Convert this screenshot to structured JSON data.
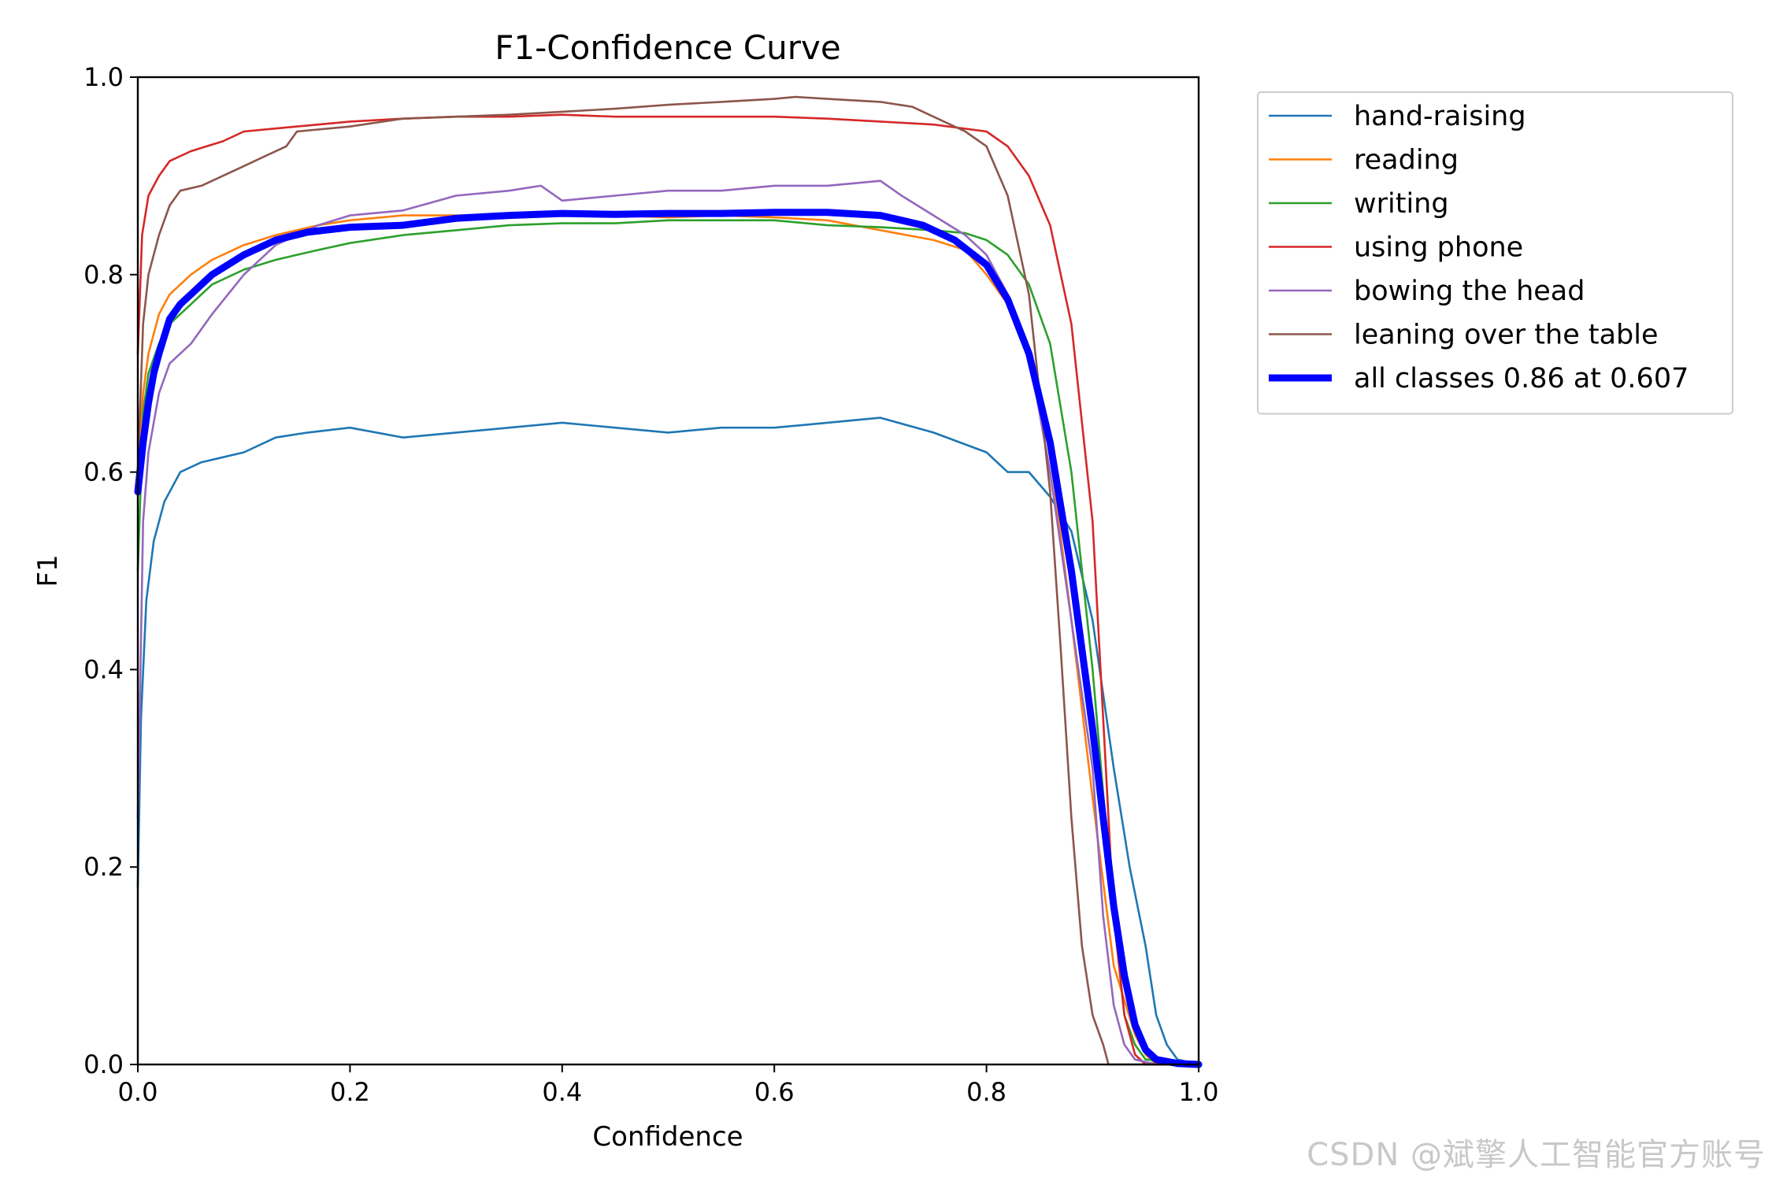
{
  "chart_data": {
    "type": "line",
    "title": "F1-Confidence Curve",
    "xlabel": "Confidence",
    "ylabel": "F1",
    "xlim": [
      0.0,
      1.0
    ],
    "ylim": [
      0.0,
      1.0
    ],
    "xticks": [
      "0.0",
      "0.2",
      "0.4",
      "0.6",
      "0.8",
      "1.0"
    ],
    "yticks": [
      "0.0",
      "0.2",
      "0.4",
      "0.6",
      "0.8",
      "1.0"
    ],
    "grid": false,
    "legend_position": "outside-top-right",
    "series": [
      {
        "name": "hand-raising",
        "color": "#1f77b4",
        "x": [
          0.0,
          0.003,
          0.008,
          0.015,
          0.025,
          0.04,
          0.06,
          0.08,
          0.1,
          0.13,
          0.16,
          0.2,
          0.25,
          0.3,
          0.35,
          0.4,
          0.45,
          0.5,
          0.55,
          0.6,
          0.65,
          0.7,
          0.75,
          0.8,
          0.82,
          0.84,
          0.86,
          0.88,
          0.9,
          0.92,
          0.935,
          0.95,
          0.96,
          0.97,
          0.98,
          1.0
        ],
        "y": [
          0.18,
          0.35,
          0.47,
          0.53,
          0.57,
          0.6,
          0.61,
          0.615,
          0.62,
          0.635,
          0.64,
          0.645,
          0.635,
          0.64,
          0.645,
          0.65,
          0.645,
          0.64,
          0.645,
          0.645,
          0.65,
          0.655,
          0.64,
          0.62,
          0.6,
          0.6,
          0.575,
          0.54,
          0.45,
          0.3,
          0.2,
          0.12,
          0.05,
          0.02,
          0.005,
          0.0
        ]
      },
      {
        "name": "reading",
        "color": "#ff7f0e",
        "x": [
          0.0,
          0.005,
          0.01,
          0.02,
          0.03,
          0.05,
          0.07,
          0.1,
          0.13,
          0.17,
          0.2,
          0.25,
          0.3,
          0.35,
          0.4,
          0.45,
          0.5,
          0.55,
          0.6,
          0.65,
          0.7,
          0.75,
          0.78,
          0.8,
          0.82,
          0.84,
          0.86,
          0.88,
          0.9,
          0.92,
          0.94,
          0.95,
          0.96,
          1.0
        ],
        "y": [
          0.6,
          0.68,
          0.72,
          0.76,
          0.78,
          0.8,
          0.815,
          0.83,
          0.84,
          0.85,
          0.855,
          0.86,
          0.86,
          0.86,
          0.862,
          0.86,
          0.858,
          0.86,
          0.858,
          0.855,
          0.845,
          0.835,
          0.825,
          0.8,
          0.77,
          0.72,
          0.62,
          0.45,
          0.27,
          0.1,
          0.03,
          0.01,
          0.0,
          0.0
        ]
      },
      {
        "name": "writing",
        "color": "#2ca02c",
        "x": [
          0.0,
          0.005,
          0.01,
          0.02,
          0.03,
          0.05,
          0.07,
          0.1,
          0.13,
          0.17,
          0.2,
          0.25,
          0.3,
          0.35,
          0.4,
          0.45,
          0.5,
          0.55,
          0.6,
          0.65,
          0.7,
          0.75,
          0.78,
          0.8,
          0.82,
          0.84,
          0.86,
          0.88,
          0.9,
          0.92,
          0.93,
          0.94,
          0.95,
          1.0
        ],
        "y": [
          0.5,
          0.66,
          0.7,
          0.73,
          0.75,
          0.77,
          0.79,
          0.805,
          0.815,
          0.825,
          0.832,
          0.84,
          0.845,
          0.85,
          0.852,
          0.852,
          0.855,
          0.855,
          0.855,
          0.85,
          0.848,
          0.845,
          0.842,
          0.835,
          0.82,
          0.79,
          0.73,
          0.6,
          0.4,
          0.15,
          0.05,
          0.02,
          0.005,
          0.0
        ]
      },
      {
        "name": "using phone",
        "color": "#d62728",
        "x": [
          0.0,
          0.004,
          0.01,
          0.02,
          0.03,
          0.05,
          0.08,
          0.1,
          0.13,
          0.17,
          0.2,
          0.25,
          0.3,
          0.35,
          0.4,
          0.45,
          0.5,
          0.55,
          0.6,
          0.65,
          0.7,
          0.75,
          0.8,
          0.82,
          0.84,
          0.86,
          0.88,
          0.9,
          0.91,
          0.92,
          0.93,
          0.94,
          0.95,
          1.0
        ],
        "y": [
          0.72,
          0.84,
          0.88,
          0.9,
          0.915,
          0.925,
          0.935,
          0.945,
          0.948,
          0.952,
          0.955,
          0.958,
          0.96,
          0.96,
          0.962,
          0.96,
          0.96,
          0.96,
          0.96,
          0.958,
          0.955,
          0.952,
          0.945,
          0.93,
          0.9,
          0.85,
          0.75,
          0.55,
          0.35,
          0.15,
          0.05,
          0.01,
          0.0,
          0.0
        ]
      },
      {
        "name": "bowing the head",
        "color": "#9467bd",
        "x": [
          0.0,
          0.005,
          0.01,
          0.02,
          0.03,
          0.05,
          0.07,
          0.1,
          0.13,
          0.17,
          0.2,
          0.25,
          0.3,
          0.35,
          0.38,
          0.4,
          0.45,
          0.5,
          0.55,
          0.6,
          0.65,
          0.7,
          0.72,
          0.75,
          0.78,
          0.8,
          0.82,
          0.84,
          0.86,
          0.88,
          0.9,
          0.91,
          0.92,
          0.93,
          0.94,
          0.96,
          1.0
        ],
        "y": [
          0.25,
          0.55,
          0.62,
          0.68,
          0.71,
          0.73,
          0.76,
          0.8,
          0.83,
          0.85,
          0.86,
          0.865,
          0.88,
          0.885,
          0.89,
          0.875,
          0.88,
          0.885,
          0.885,
          0.89,
          0.89,
          0.895,
          0.88,
          0.86,
          0.84,
          0.82,
          0.78,
          0.72,
          0.6,
          0.45,
          0.3,
          0.15,
          0.06,
          0.02,
          0.005,
          0.0,
          0.0
        ]
      },
      {
        "name": "leaning over the table",
        "color": "#8c564b",
        "x": [
          0.0,
          0.005,
          0.01,
          0.02,
          0.03,
          0.04,
          0.06,
          0.08,
          0.1,
          0.12,
          0.14,
          0.15,
          0.2,
          0.25,
          0.3,
          0.35,
          0.4,
          0.45,
          0.5,
          0.55,
          0.6,
          0.62,
          0.65,
          0.7,
          0.73,
          0.75,
          0.78,
          0.8,
          0.82,
          0.84,
          0.85,
          0.86,
          0.87,
          0.88,
          0.89,
          0.9,
          0.91,
          0.915,
          1.0
        ],
        "y": [
          0.6,
          0.75,
          0.8,
          0.84,
          0.87,
          0.885,
          0.89,
          0.9,
          0.91,
          0.92,
          0.93,
          0.945,
          0.95,
          0.958,
          0.96,
          0.962,
          0.965,
          0.968,
          0.972,
          0.975,
          0.978,
          0.98,
          0.978,
          0.975,
          0.97,
          0.96,
          0.945,
          0.93,
          0.88,
          0.78,
          0.68,
          0.58,
          0.42,
          0.25,
          0.12,
          0.05,
          0.02,
          0.0,
          0.0
        ]
      },
      {
        "name": "all classes 0.86 at 0.607",
        "color": "#0000ff",
        "bold": true,
        "x": [
          0.0,
          0.005,
          0.01,
          0.015,
          0.02,
          0.03,
          0.04,
          0.05,
          0.07,
          0.1,
          0.13,
          0.16,
          0.2,
          0.25,
          0.3,
          0.35,
          0.4,
          0.45,
          0.5,
          0.55,
          0.6,
          0.65,
          0.7,
          0.74,
          0.77,
          0.8,
          0.82,
          0.84,
          0.86,
          0.88,
          0.9,
          0.92,
          0.93,
          0.94,
          0.95,
          0.96,
          0.98,
          1.0
        ],
        "y": [
          0.58,
          0.63,
          0.67,
          0.7,
          0.72,
          0.755,
          0.77,
          0.78,
          0.8,
          0.82,
          0.835,
          0.843,
          0.848,
          0.85,
          0.857,
          0.86,
          0.862,
          0.861,
          0.862,
          0.862,
          0.863,
          0.863,
          0.86,
          0.85,
          0.835,
          0.81,
          0.775,
          0.72,
          0.63,
          0.5,
          0.34,
          0.16,
          0.09,
          0.04,
          0.015,
          0.005,
          0.001,
          0.0
        ]
      }
    ]
  },
  "watermark": "CSDN @斌擎人工智能官方账号"
}
